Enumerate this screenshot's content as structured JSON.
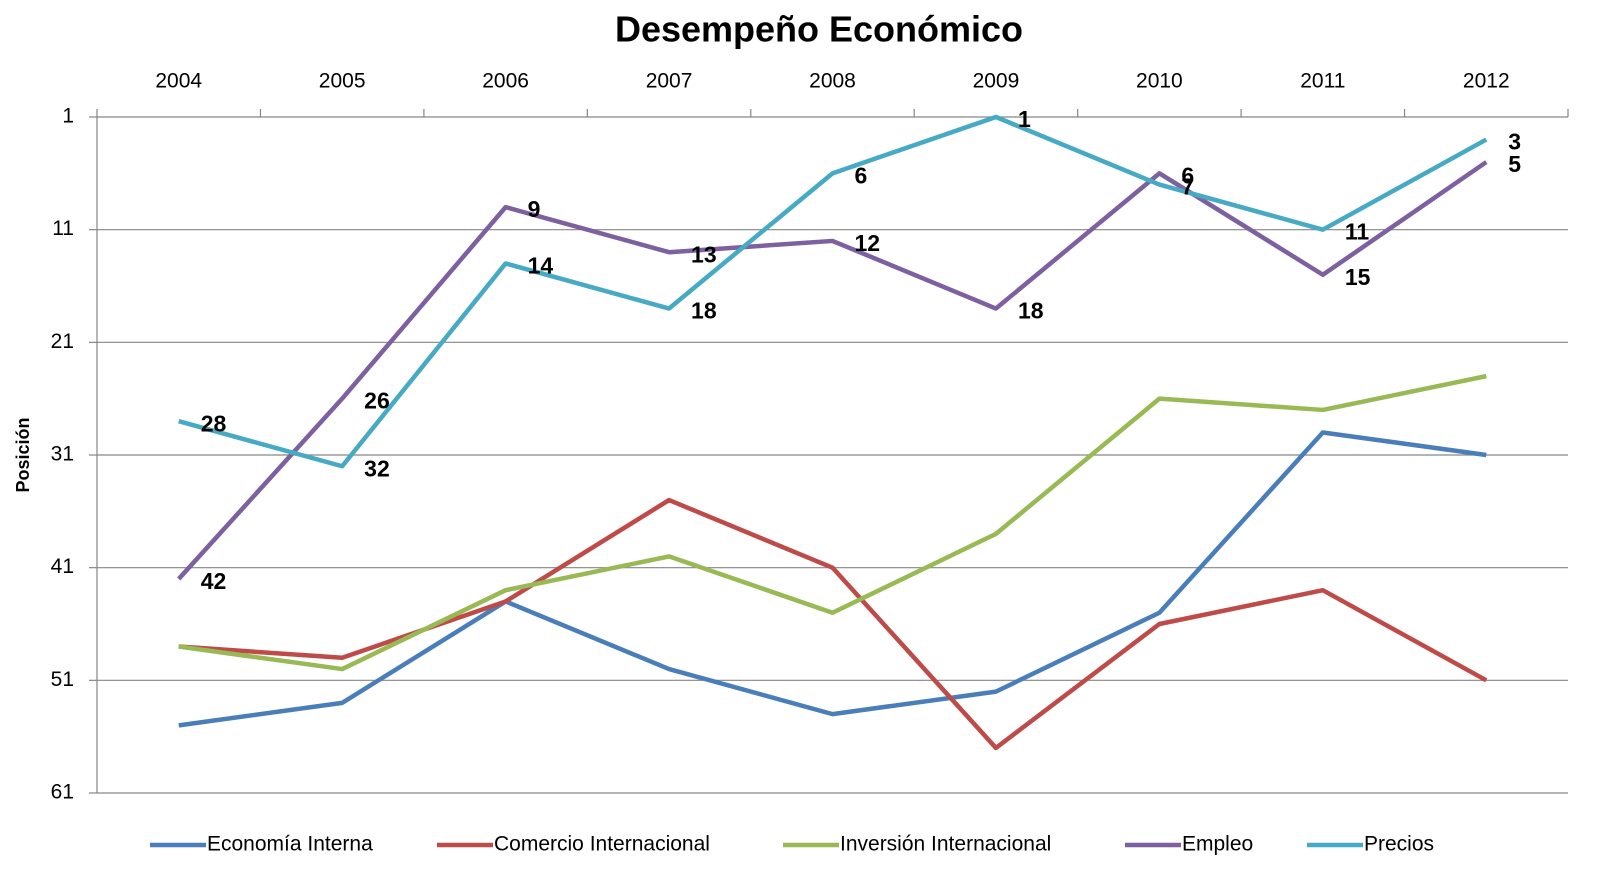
{
  "chart_data": {
    "type": "line",
    "title": "Desempeño Económico",
    "y_label": "Posición",
    "categories": [
      "2004",
      "2005",
      "2006",
      "2007",
      "2008",
      "2009",
      "2010",
      "2011",
      "2012"
    ],
    "series": [
      {
        "name": "Economía Interna",
        "color": "#4a7ebb",
        "values": [
          55,
          53,
          44,
          50,
          54,
          52,
          45,
          29,
          31
        ],
        "data_labels": false
      },
      {
        "name": "Comercio Internacional",
        "color": "#be4b48",
        "values": [
          48,
          49,
          44,
          35,
          41,
          57,
          46,
          43,
          51
        ],
        "data_labels": false
      },
      {
        "name": "Inversión Internacional",
        "color": "#98b954",
        "values": [
          48,
          50,
          43,
          40,
          45,
          38,
          26,
          27,
          24
        ],
        "data_labels": false
      },
      {
        "name": "Empleo",
        "color": "#7d60a0",
        "values": [
          42,
          26,
          9,
          13,
          12,
          18,
          6,
          15,
          5
        ],
        "data_labels": true
      },
      {
        "name": "Precios",
        "color": "#46aac5",
        "values": [
          28,
          32,
          14,
          18,
          6,
          1,
          7,
          11,
          3
        ],
        "data_labels": true
      }
    ],
    "ylim": [
      1,
      61
    ],
    "yticks": [
      1,
      11,
      21,
      31,
      41,
      51,
      61
    ],
    "y_reversed": true,
    "grid": true,
    "x_axis_position": "top",
    "legend": "bottom"
  }
}
